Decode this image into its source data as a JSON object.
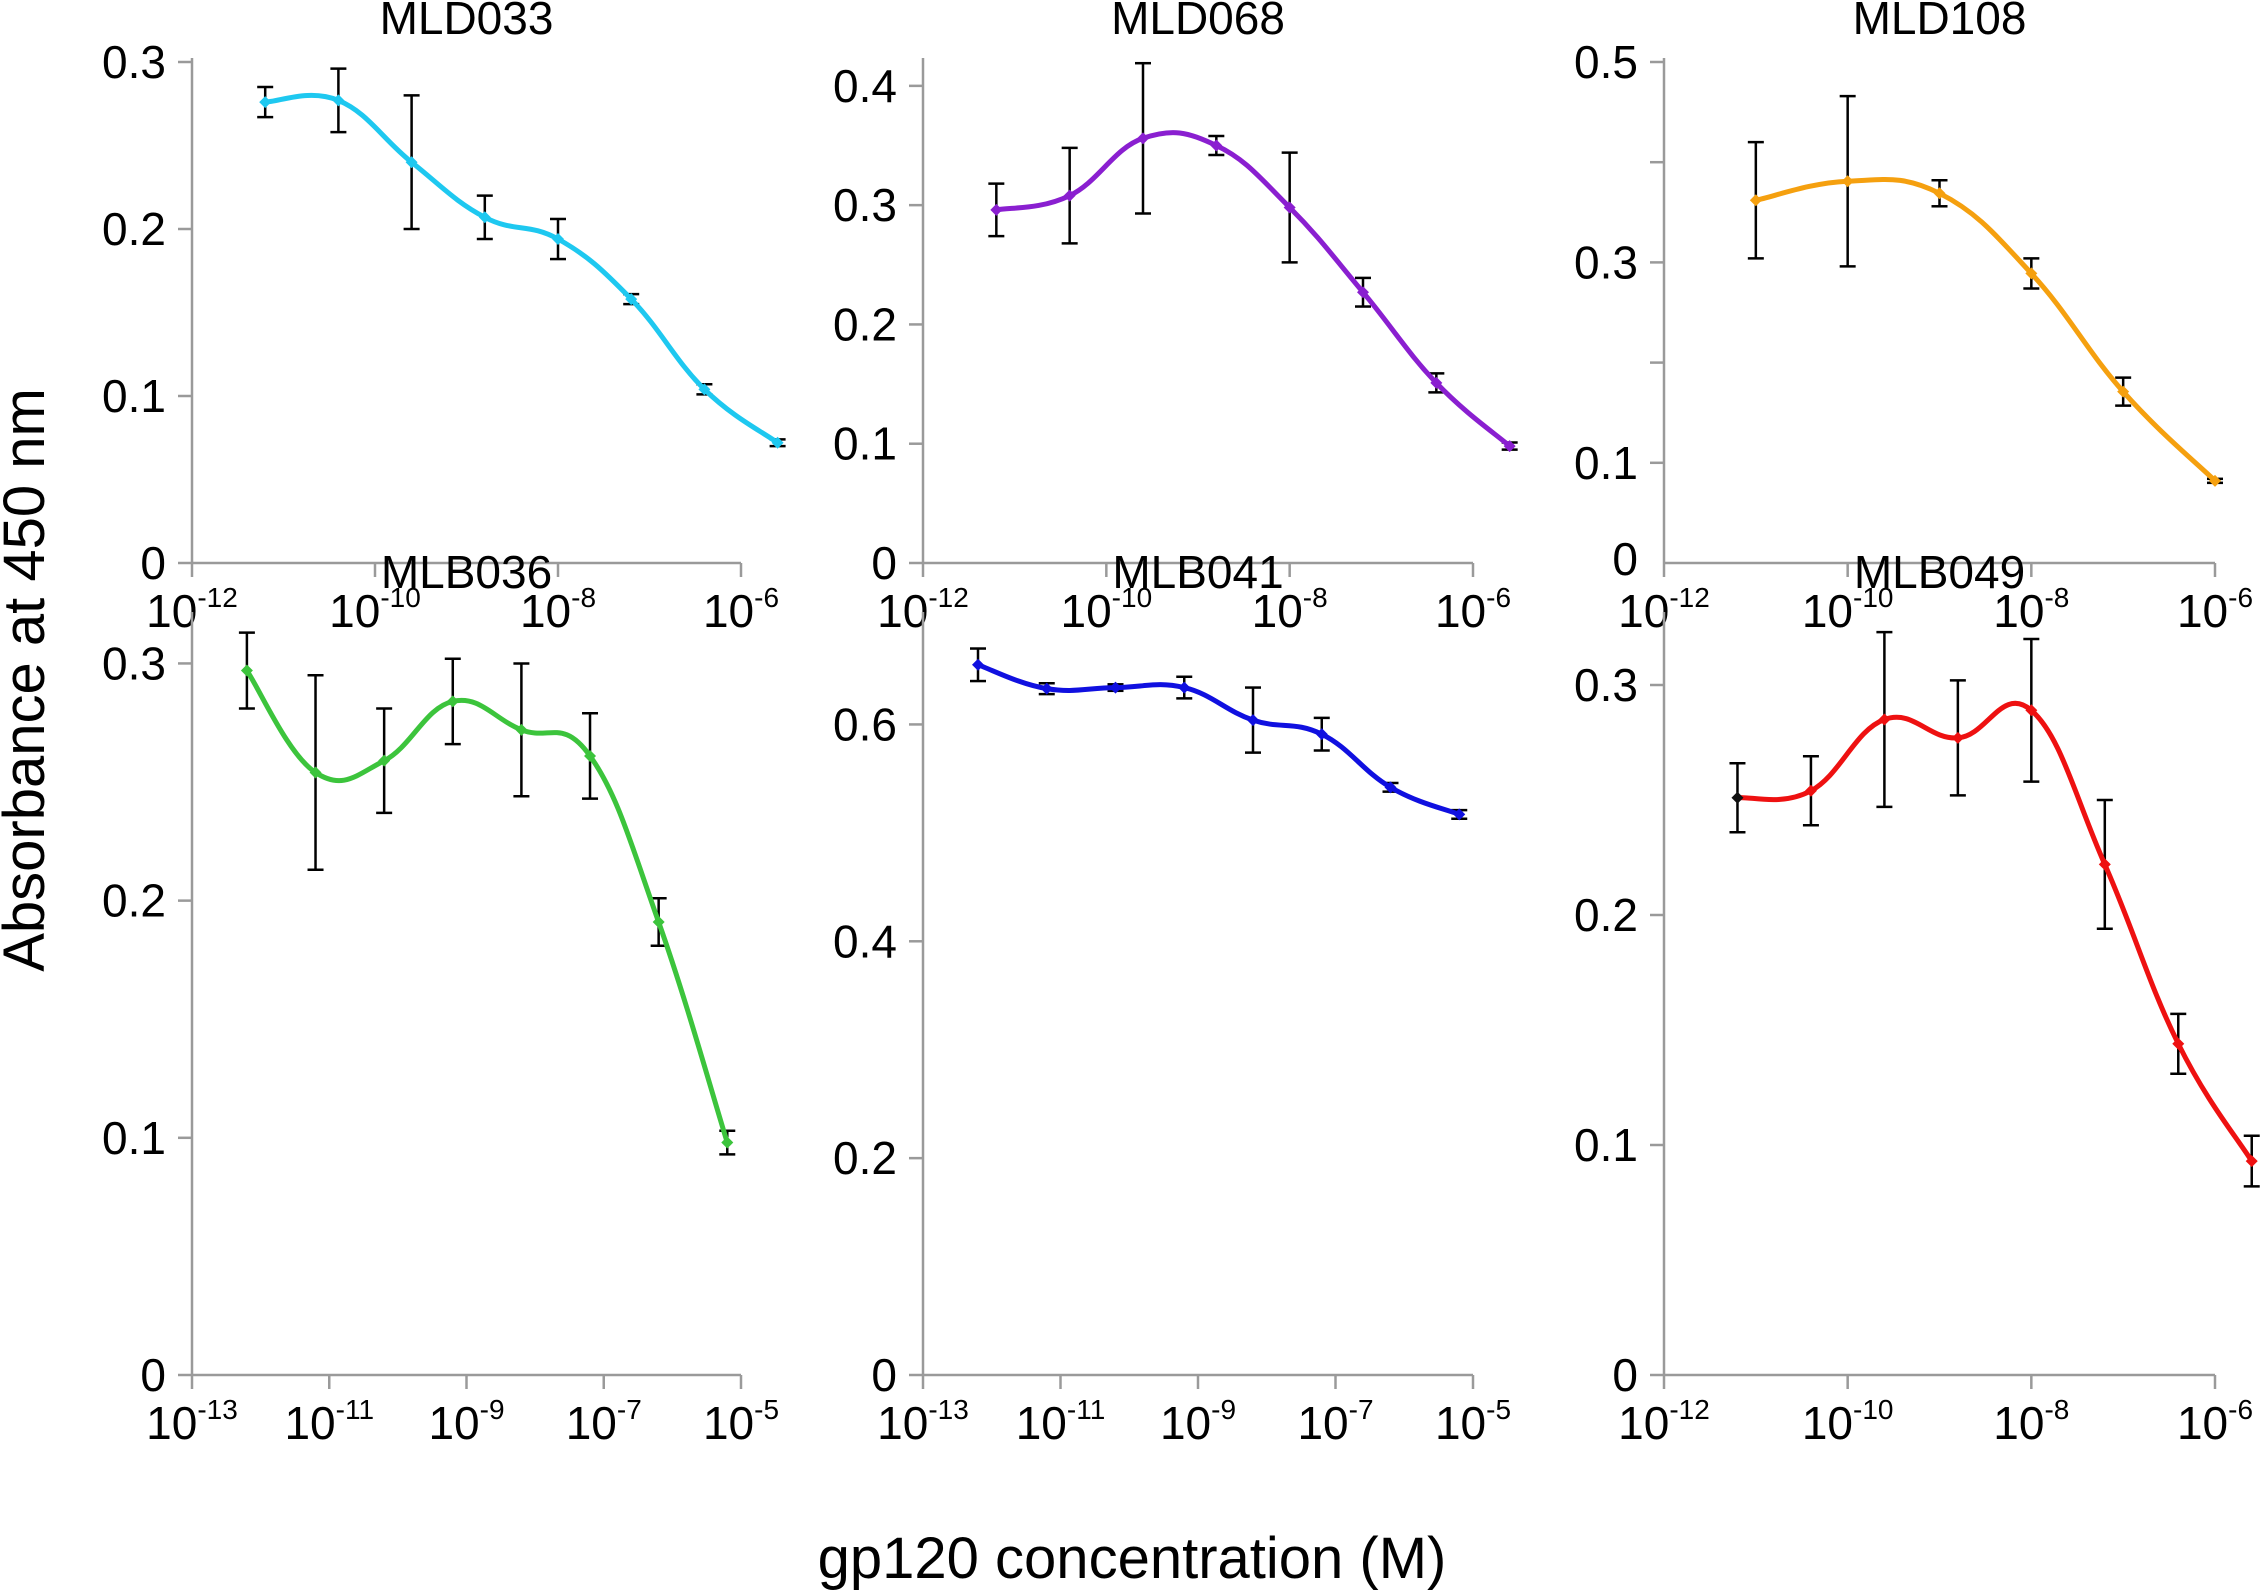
{
  "figure": {
    "ylabel": "Absorbance at 450 nm",
    "xlabel": "gp120 concentration (M)"
  },
  "chart_data": [
    {
      "type": "line",
      "title": "MLD033",
      "color": "#1ec8f0",
      "xscale": "log10",
      "xlim_exp": [
        -12,
        -6
      ],
      "xtick_exps": [
        -12,
        -10,
        -8,
        -6
      ],
      "ylim": [
        0,
        0.3
      ],
      "yticks": [
        0,
        0.1,
        0.2,
        0.3
      ],
      "ytick_labels": [
        "0",
        "0.1",
        "0.2",
        "0.3"
      ],
      "yminor": [],
      "x_exp": [
        -11.2,
        -10.4,
        -9.6,
        -8.8,
        -8.0,
        -7.2,
        -6.4,
        -5.6
      ],
      "values": [
        0.276,
        0.277,
        0.24,
        0.207,
        0.194,
        0.158,
        0.104,
        0.072
      ],
      "errors": [
        0.009,
        0.019,
        0.04,
        0.013,
        0.012,
        0.003,
        0.003,
        0.002
      ],
      "point_colors": []
    },
    {
      "type": "line",
      "title": "MLD068",
      "color": "#8a1fd0",
      "xscale": "log10",
      "xlim_exp": [
        -12,
        -6
      ],
      "xtick_exps": [
        -12,
        -10,
        -8,
        -6
      ],
      "ylim": [
        0,
        0.42
      ],
      "yticks": [
        0,
        0.1,
        0.2,
        0.3,
        0.4
      ],
      "ytick_labels": [
        "0",
        "0.1",
        "0.2",
        "0.3",
        "0.4"
      ],
      "yminor": [],
      "x_exp": [
        -11.2,
        -10.4,
        -9.6,
        -8.8,
        -8.0,
        -7.2,
        -6.4,
        -5.6
      ],
      "values": [
        0.296,
        0.308,
        0.356,
        0.35,
        0.298,
        0.227,
        0.151,
        0.098
      ],
      "errors": [
        0.022,
        0.04,
        0.063,
        0.008,
        0.046,
        0.012,
        0.008,
        0.003
      ],
      "point_colors": []
    },
    {
      "type": "line",
      "title": "MLD108",
      "color": "#f5a00f",
      "xscale": "log10",
      "xlim_exp": [
        -12,
        -6
      ],
      "xtick_exps": [
        -12,
        -10,
        -8,
        -6
      ],
      "ylim": [
        0,
        0.5
      ],
      "yticks": [
        0.1,
        0.3,
        0.5
      ],
      "ytick_labels": [
        "0.1",
        "0.3",
        "0.5"
      ],
      "yminor": [
        0.2,
        0.4
      ],
      "zero_label": "0",
      "x_exp": [
        -11,
        -10,
        -9,
        -8,
        -7,
        -6
      ],
      "values": [
        0.362,
        0.381,
        0.369,
        0.289,
        0.171,
        0.082
      ],
      "errors": [
        0.058,
        0.085,
        0.013,
        0.015,
        0.014,
        0.002
      ],
      "point_colors": []
    },
    {
      "type": "line",
      "title": "MLB036",
      "color": "#3cc43c",
      "xscale": "log10",
      "xlim_exp": [
        -13,
        -5
      ],
      "xtick_exps": [
        -13,
        -11,
        -9,
        -7,
        -5
      ],
      "ylim": [
        0,
        0.32
      ],
      "yticks": [
        0,
        0.1,
        0.2,
        0.3
      ],
      "ytick_labels": [
        "0",
        "0.1",
        "0.2",
        "0.3"
      ],
      "yminor": [],
      "x_exp": [
        -12.2,
        -11.2,
        -10.2,
        -9.2,
        -8.2,
        -7.2,
        -6.2,
        -5.2
      ],
      "values": [
        0.297,
        0.254,
        0.259,
        0.284,
        0.272,
        0.261,
        0.191,
        0.098
      ],
      "errors": [
        0.016,
        0.041,
        0.022,
        0.018,
        0.028,
        0.018,
        0.01,
        0.005
      ],
      "point_colors": []
    },
    {
      "type": "line",
      "title": "MLB041",
      "color": "#1010e0",
      "xscale": "log10",
      "xlim_exp": [
        -13,
        -5
      ],
      "xtick_exps": [
        -13,
        -11,
        -9,
        -7,
        -5
      ],
      "ylim": [
        0,
        0.7
      ],
      "yticks": [
        0,
        0.2,
        0.4,
        0.6
      ],
      "ytick_labels": [
        "0",
        "0.2",
        "0.4",
        "0.6"
      ],
      "yminor": [],
      "x_exp": [
        -12.2,
        -11.2,
        -10.2,
        -9.2,
        -8.2,
        -7.2,
        -6.2,
        -5.2
      ],
      "values": [
        0.655,
        0.633,
        0.634,
        0.634,
        0.604,
        0.591,
        0.542,
        0.517
      ],
      "errors": [
        0.015,
        0.005,
        0.003,
        0.01,
        0.03,
        0.015,
        0.004,
        0.004
      ],
      "point_colors": []
    },
    {
      "type": "line",
      "title": "MLB049",
      "color": "#ee1111",
      "xscale": "log10",
      "xlim_exp": [
        -12,
        -6
      ],
      "xtick_exps": [
        -12,
        -10,
        -8,
        -6
      ],
      "ylim": [
        0,
        0.33
      ],
      "yticks": [
        0,
        0.1,
        0.2,
        0.3
      ],
      "ytick_labels": [
        "0",
        "0.1",
        "0.2",
        "0.3"
      ],
      "yminor": [],
      "x_exp": [
        -11.2,
        -10.4,
        -9.6,
        -8.8,
        -8.0,
        -7.2,
        -6.4,
        -5.6
      ],
      "values": [
        0.251,
        0.254,
        0.285,
        0.277,
        0.289,
        0.222,
        0.144,
        0.093
      ],
      "errors": [
        0.015,
        0.015,
        0.038,
        0.025,
        0.031,
        0.028,
        0.013,
        0.011
      ],
      "point_colors": [
        "#111111",
        "#ee1111",
        "#ee1111",
        "#ee1111",
        "#ee1111",
        "#ee1111",
        "#ee1111",
        "#ee1111"
      ]
    }
  ]
}
